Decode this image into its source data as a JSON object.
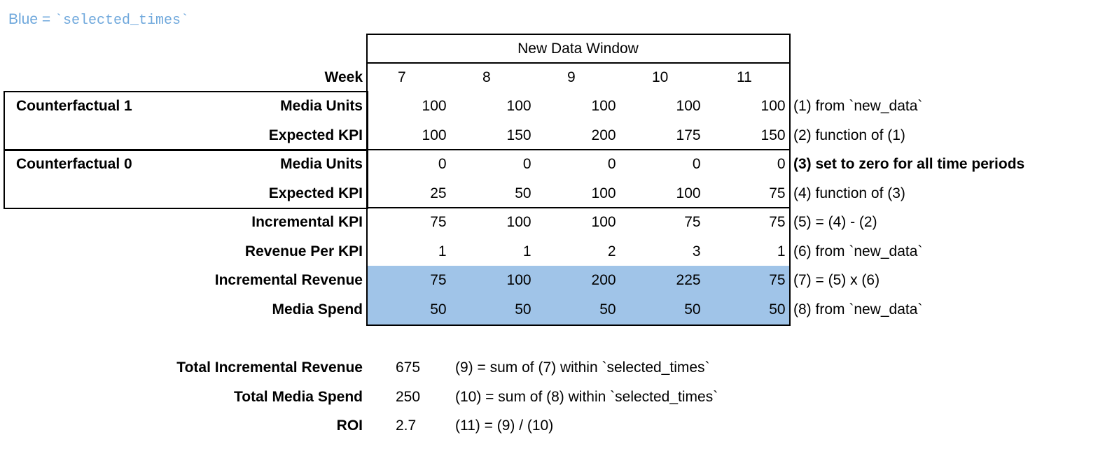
{
  "legend": {
    "prefix": "Blue = ",
    "code": "`selected_times`",
    "color": "#6fa8dc",
    "highlight_color": "#a0c4e8"
  },
  "header": {
    "window_title": "New Data Window",
    "week_label": "Week",
    "weeks": [
      "7",
      "8",
      "9",
      "10",
      "11"
    ]
  },
  "groups": [
    {
      "label": "Counterfactual 1"
    },
    {
      "label": "Counterfactual 0"
    }
  ],
  "rows": [
    {
      "label": "Media Units",
      "values": [
        "100",
        "100",
        "100",
        "100",
        "100"
      ],
      "note": "(1) from `new_data`",
      "note_bold": false,
      "highlight": false
    },
    {
      "label": "Expected KPI",
      "values": [
        "100",
        "150",
        "200",
        "175",
        "150"
      ],
      "note": "(2) function of (1)",
      "note_bold": false,
      "highlight": false
    },
    {
      "label": "Media Units",
      "values": [
        "0",
        "0",
        "0",
        "0",
        "0"
      ],
      "note": "(3) set to zero for all time periods",
      "note_bold": true,
      "highlight": false
    },
    {
      "label": "Expected KPI",
      "values": [
        "25",
        "50",
        "100",
        "100",
        "75"
      ],
      "note": "(4) function of (3)",
      "note_bold": false,
      "highlight": false
    },
    {
      "label": "Incremental KPI",
      "values": [
        "75",
        "100",
        "100",
        "75",
        "75"
      ],
      "note": "(5) = (4) - (2)",
      "note_bold": false,
      "highlight": false
    },
    {
      "label": "Revenue Per KPI",
      "values": [
        "1",
        "1",
        "2",
        "3",
        "1"
      ],
      "note": "(6) from `new_data`",
      "note_bold": false,
      "highlight": false
    },
    {
      "label": "Incremental Revenue",
      "values": [
        "75",
        "100",
        "200",
        "225",
        "75"
      ],
      "note": "(7) = (5) x (6)",
      "note_bold": false,
      "highlight": true
    },
    {
      "label": "Media Spend",
      "values": [
        "50",
        "50",
        "50",
        "50",
        "50"
      ],
      "note": "(8) from `new_data`",
      "note_bold": false,
      "highlight": true
    }
  ],
  "totals": [
    {
      "label": "Total Incremental Revenue",
      "value": "675",
      "note": "(9) = sum of (7) within `selected_times`"
    },
    {
      "label": "Total Media Spend",
      "value": "250",
      "note": "(10) = sum of (8) within `selected_times`"
    },
    {
      "label": "ROI",
      "value": "2.7",
      "note": "(11) = (9) / (10)"
    }
  ]
}
